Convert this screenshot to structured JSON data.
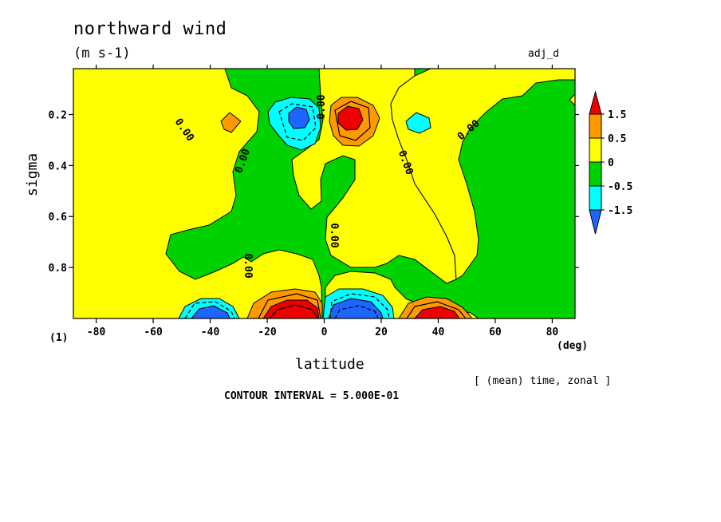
{
  "header": {
    "title": "northward wind",
    "units": "(m s-1)",
    "run_name": "adj_d"
  },
  "footer": {
    "axis_index": "(1)",
    "x_unit": "(deg)",
    "averaging_note": "[ (mean) time, zonal ]",
    "contour_interval": "CONTOUR INTERVAL = 5.000E-01"
  },
  "chart_data": {
    "type": "heatmap",
    "title": "northward wind",
    "units": "(m s-1)",
    "xlabel": "latitude",
    "ylabel": "sigma",
    "xlim": [
      -88,
      88
    ],
    "ylim": [
      1.0,
      0.02
    ],
    "x_ticks": [
      -80,
      -60,
      -40,
      -20,
      0,
      20,
      40,
      60,
      80
    ],
    "x_tick_labels": [
      "-80",
      "-60",
      "-40",
      "-20",
      "0",
      "20",
      "40",
      "60",
      "80"
    ],
    "y_ticks": [
      0.2,
      0.4,
      0.6,
      0.8
    ],
    "y_tick_labels": [
      "0.2",
      "0.4",
      "0.6",
      "0.8"
    ],
    "contour_interval": 0.5,
    "contour_label": "0.00",
    "colorbar": {
      "levels": [
        -1.5,
        -0.5,
        0,
        0.5,
        1.5
      ],
      "level_labels": [
        "-1.5",
        "-0.5",
        "0",
        "0.5",
        "1.5"
      ],
      "colors": [
        "#1e64ff",
        "#00ffff",
        "#00d200",
        "#ffff00",
        "#ff9900",
        "#ee0000"
      ]
    },
    "features": [
      {
        "kind": "max",
        "lat": 8,
        "sigma": 0.2,
        "value": 2.0
      },
      {
        "kind": "min",
        "lat": -10,
        "sigma": 0.2,
        "value": -1.8
      },
      {
        "kind": "max",
        "lat": -33,
        "sigma": 0.22,
        "value": 0.6
      },
      {
        "kind": "min",
        "lat": 33,
        "sigma": 0.23,
        "value": -0.7
      },
      {
        "kind": "max",
        "lat": -12,
        "sigma": 0.98,
        "value": 3.0
      },
      {
        "kind": "min",
        "lat": 10,
        "sigma": 0.98,
        "value": -3.0
      },
      {
        "kind": "min",
        "lat": -42,
        "sigma": 0.98,
        "value": -2.0
      },
      {
        "kind": "max",
        "lat": 40,
        "sigma": 0.98,
        "value": 2.0
      }
    ]
  }
}
